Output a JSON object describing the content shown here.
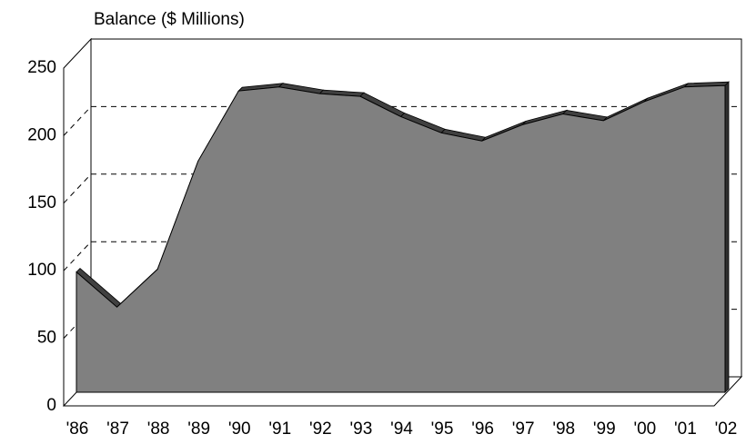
{
  "chart_data": {
    "type": "area3d",
    "title": "Balance ($ Millions)",
    "categories": [
      "'86",
      "'87",
      "'88",
      "'89",
      "'90",
      "'91",
      "'92",
      "'93",
      "'94",
      "'95",
      "'96",
      "'97",
      "'98",
      "'99",
      "'00",
      "'01",
      "'02"
    ],
    "values": [
      89,
      63,
      91,
      171,
      223,
      226,
      221,
      219,
      204,
      192,
      186,
      198,
      206,
      201,
      215,
      226,
      227
    ],
    "color": "#808080",
    "ylim": [
      0,
      250
    ],
    "yticks": [
      0,
      50,
      100,
      150,
      200,
      250
    ],
    "grid": true
  }
}
